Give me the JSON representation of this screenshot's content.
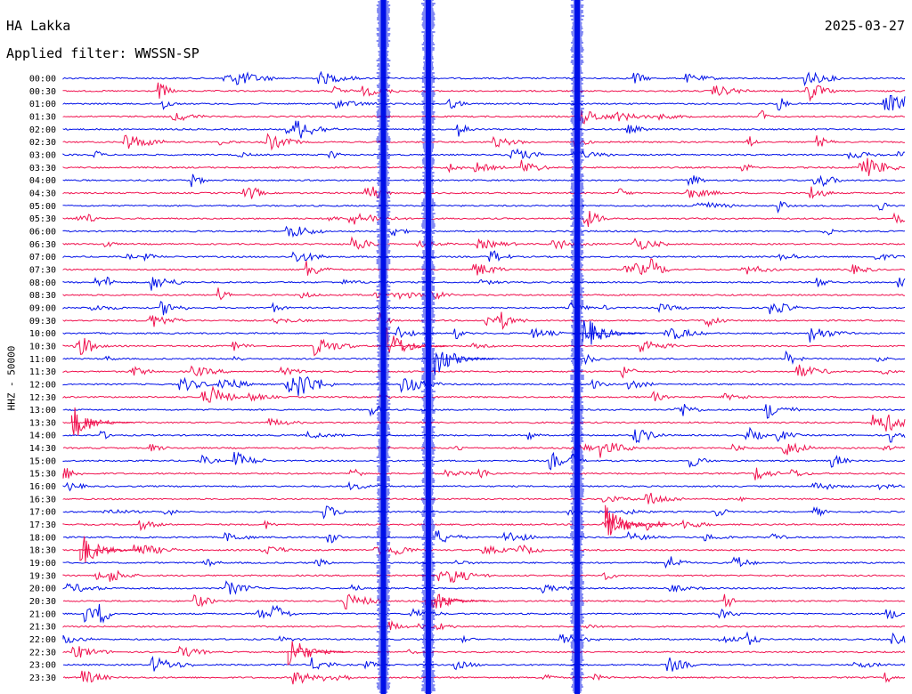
{
  "header": {
    "station": "HA Lakka",
    "date": "2025-03-27",
    "filter_label": "Applied filter: WWSSN-SP"
  },
  "chart_data": {
    "type": "line",
    "title": "HA Lakka",
    "subtitle": "Applied filter: WWSSN-SP",
    "date": "2025-03-27",
    "ylabel": "HHZ - 50000",
    "row_interval_minutes": 30,
    "tick_labels": [
      "00:00",
      "00:30",
      "01:00",
      "01:30",
      "02:00",
      "02:30",
      "03:00",
      "03:30",
      "04:00",
      "04:30",
      "05:00",
      "05:30",
      "06:00",
      "06:30",
      "07:00",
      "07:30",
      "08:00",
      "08:30",
      "09:00",
      "09:30",
      "10:00",
      "10:30",
      "11:00",
      "11:30",
      "12:00",
      "12:30",
      "13:00",
      "13:30",
      "14:00",
      "14:30",
      "15:00",
      "15:30",
      "16:00",
      "16:30",
      "17:00",
      "17:30",
      "18:00",
      "18:30",
      "19:00",
      "19:30",
      "20:00",
      "20:30",
      "21:00",
      "21:30",
      "22:00",
      "22:30",
      "23:00",
      "23:30"
    ],
    "series_colors": [
      "#0010e8",
      "#f0124f"
    ],
    "grid": false,
    "large_events": [
      {
        "minute_in_row": 11.4,
        "start_row": 0,
        "end_row": 47
      },
      {
        "minute_in_row": 13.0,
        "start_row": 0,
        "end_row": 47
      },
      {
        "minute_in_row": 18.3,
        "start_row": 0,
        "end_row": 47
      }
    ],
    "notable_events": [
      {
        "row": 21,
        "minute_in_row": 11.5
      },
      {
        "row": 22,
        "minute_in_row": 13.2
      },
      {
        "row": 20,
        "minute_in_row": 18.5
      },
      {
        "row": 35,
        "minute_in_row": 19.3
      },
      {
        "row": 27,
        "minute_in_row": 0.3
      },
      {
        "row": 37,
        "minute_in_row": 0.6
      },
      {
        "row": 41,
        "minute_in_row": 12.9
      },
      {
        "row": 45,
        "minute_in_row": 8.0
      }
    ]
  }
}
